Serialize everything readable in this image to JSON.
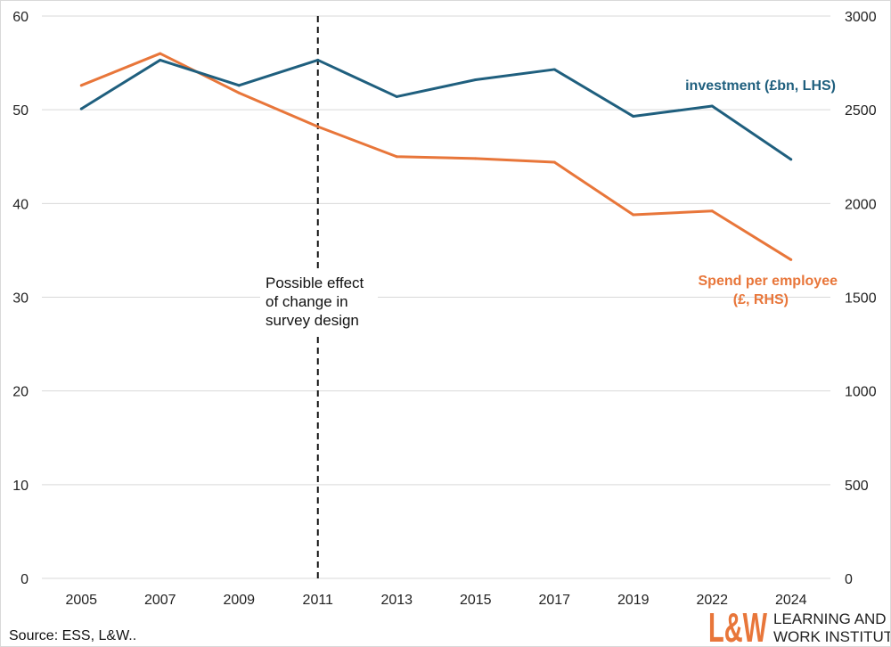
{
  "chart_data": {
    "type": "line",
    "categories": [
      "2005",
      "2007",
      "2009",
      "2011",
      "2013",
      "2015",
      "2017",
      "2019",
      "2022",
      "2024"
    ],
    "series": [
      {
        "name": "investment (£bn, LHS)",
        "axis": "left",
        "color": "#1f5f7e",
        "values": [
          50.1,
          55.3,
          52.6,
          55.3,
          51.4,
          53.2,
          54.3,
          49.3,
          50.4,
          44.7
        ]
      },
      {
        "name": "Spend per employee (£, RHS)",
        "axis": "right",
        "color": "#e8763a",
        "values": [
          2630,
          2800,
          2590,
          2410,
          2250,
          2240,
          2220,
          1940,
          1960,
          1700
        ]
      }
    ],
    "y_left": {
      "min": 0,
      "max": 60,
      "ticks": [
        0,
        10,
        20,
        30,
        40,
        50,
        60
      ]
    },
    "y_right": {
      "min": 0,
      "max": 3000,
      "ticks": [
        0,
        500,
        1000,
        1500,
        2000,
        2500,
        3000
      ]
    },
    "gridlines": true,
    "annotation": {
      "at_category": "2011",
      "lines": [
        "Possible effect",
        "of change in",
        "survey design"
      ]
    },
    "labels": {
      "investment": "investment (£bn, LHS)",
      "spend_line1": "Spend per employee",
      "spend_line2": "(£, RHS)"
    }
  },
  "source": "Source: ESS, L&W..",
  "logo": {
    "mark": "L&W",
    "line1": "LEARNING AND",
    "line2": "WORK INSTITUTE"
  },
  "colors": {
    "investment": "#1f5f7e",
    "spend": "#e8763a",
    "grid": "#d9d9d9"
  }
}
